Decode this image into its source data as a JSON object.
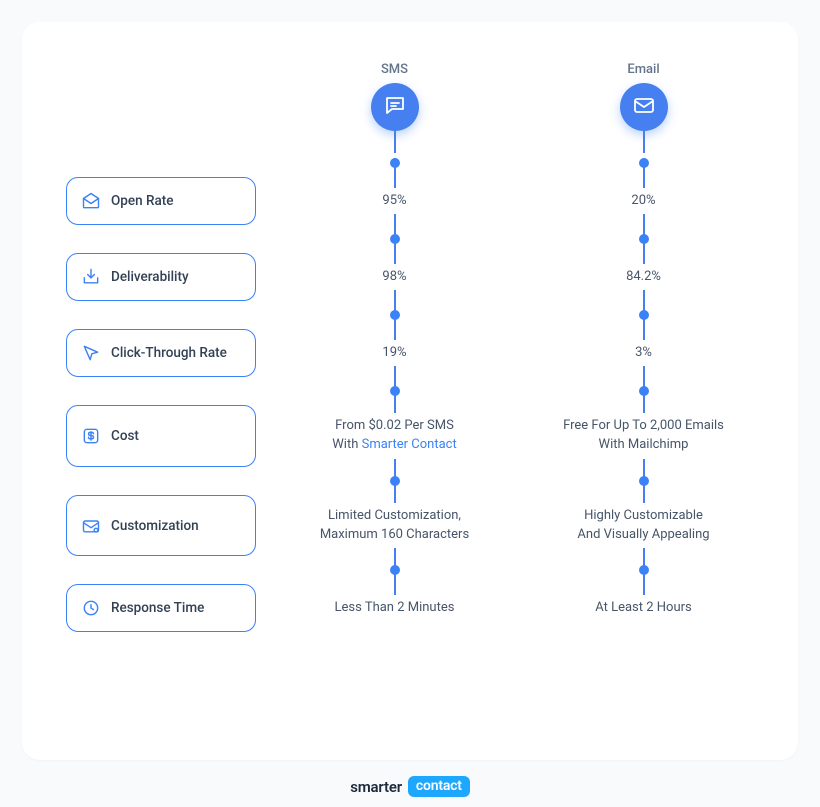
{
  "theme": {
    "accent": "#3b82f6",
    "accent_soft": "#457ff0",
    "dot": "#3b82f6",
    "line": "#457ff0",
    "text_muted": "#64748b",
    "text_body": "#475569",
    "card_bg": "#ffffff",
    "page_bg": "#f8fafc"
  },
  "columns": {
    "sms": {
      "label": "SMS"
    },
    "email": {
      "label": "Email"
    }
  },
  "rows": [
    {
      "id": "open-rate",
      "label": "Open Rate",
      "icon": "envelope-open",
      "sms": "95%",
      "email": "20%"
    },
    {
      "id": "deliverability",
      "label": "Deliverability",
      "icon": "inbox-down",
      "sms": "98%",
      "email": "84.2%"
    },
    {
      "id": "ctr",
      "label": "Click-Through Rate",
      "icon": "cursor",
      "sms": "19%",
      "email": "3%"
    },
    {
      "id": "cost",
      "label": "Cost",
      "icon": "dollar",
      "sms_prefix": "From $0.02 Per SMS\nWith ",
      "sms_link": "Smarter Contact",
      "email": "Free For Up To 2,000 Emails\nWith Mailchimp"
    },
    {
      "id": "customization",
      "label": "Customization",
      "icon": "envelope-gear",
      "sms": "Limited Customization,\nMaximum 160 Characters",
      "email": "Highly Customizable\nAnd Visually Appealing"
    },
    {
      "id": "response-time",
      "label": "Response Time",
      "icon": "clock",
      "sms": "Less Than 2 Minutes",
      "email": "At Least 2 Hours"
    }
  ],
  "footer": {
    "brand_a": "smarter",
    "brand_b": "contact",
    "pill_bg": "#1ea7ff",
    "pill_text": "#ffffff"
  }
}
